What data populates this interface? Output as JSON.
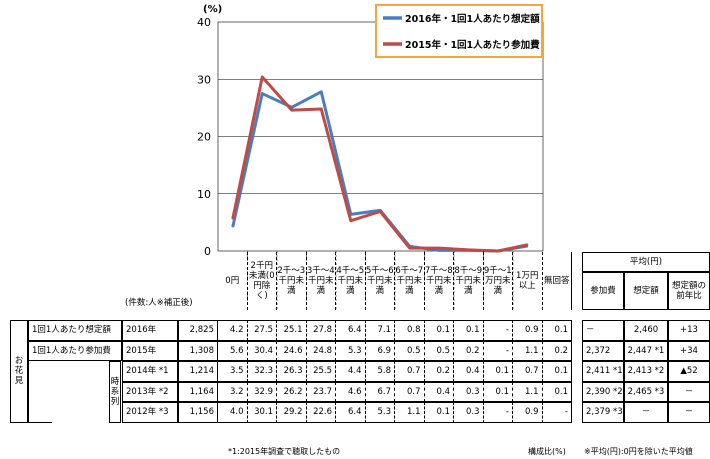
{
  "chart_data": {
    "type": "line",
    "ylabel": "(%)",
    "ylim": [
      0,
      40
    ],
    "yticks": [
      "0",
      "10",
      "20",
      "30",
      "40"
    ],
    "categories": [
      "0円",
      "2千円未満(0円除く)",
      "2千～3千円未満",
      "3千～4千円未満",
      "4千～5千円未満",
      "5千～6千円未満",
      "6千～7千円未満",
      "7千～8千円未満",
      "8千～9千円未満",
      "9千～1万円未満",
      "1万円以上"
    ],
    "series": [
      {
        "name": "2016年・1回1人あたり想定額",
        "color": "#4a7ebb",
        "values": [
          4.2,
          27.5,
          25.1,
          27.8,
          6.4,
          7.1,
          0.8,
          0.1,
          0.1,
          0,
          0.9
        ]
      },
      {
        "name": "2015年・1回1人あたり参加費",
        "color": "#be4b48",
        "values": [
          5.6,
          30.4,
          24.6,
          24.8,
          5.3,
          6.9,
          0.5,
          0.5,
          0.2,
          0,
          1.1
        ]
      }
    ],
    "legend_position": "top-right",
    "legend_border_color": "#f2a541",
    "grid": true
  },
  "table": {
    "col_headers": [
      "0円",
      "2千円未満(0円除く)",
      "2千～3千円未満",
      "3千～4千円未満",
      "4千～5千円未満",
      "5千～6千円未満",
      "6千～7千円未満",
      "7千～8千円未満",
      "8千～9千円未満",
      "9千～1万円未満",
      "1万円以上",
      "無回答"
    ],
    "count_header": "(件数:人※補正後)",
    "side_label": "お花見",
    "group_series_label": "時系列",
    "avg_header": "平均(円)",
    "avg_cols": [
      "参加費",
      "想定額",
      "想定額の前年比"
    ],
    "rows": [
      {
        "label": "1回1人あたり想定額",
        "year": "2016年",
        "n": "2,825",
        "values": [
          "4.2",
          "27.5",
          "25.1",
          "27.8",
          "6.4",
          "7.1",
          "0.8",
          "0.1",
          "0.1",
          "-",
          "0.9",
          "0.1"
        ],
        "avg": [
          "－",
          "2,460",
          "+13"
        ]
      },
      {
        "label": "1回1人あたり参加費",
        "year": "2015年",
        "n": "1,308",
        "values": [
          "5.6",
          "30.4",
          "24.6",
          "24.8",
          "5.3",
          "6.9",
          "0.5",
          "0.5",
          "0.2",
          "-",
          "1.1",
          "0.2"
        ],
        "avg": [
          "2,372",
          "2,447 *1",
          "+34"
        ]
      },
      {
        "label": "",
        "year": "2014年 *1",
        "n": "1,214",
        "values": [
          "3.5",
          "32.3",
          "26.3",
          "25.5",
          "4.4",
          "5.8",
          "0.7",
          "0.2",
          "0.4",
          "0.1",
          "0.7",
          "0.1"
        ],
        "avg": [
          "2,411 *1",
          "2,413 *2",
          "▲52"
        ]
      },
      {
        "label": "",
        "year": "2013年 *2",
        "n": "1,164",
        "values": [
          "3.2",
          "32.9",
          "26.2",
          "23.7",
          "4.6",
          "6.7",
          "0.7",
          "0.4",
          "0.3",
          "0.1",
          "1.1",
          "0.1"
        ],
        "avg": [
          "2,390 *2",
          "2,465 *3",
          "－"
        ]
      },
      {
        "label": "",
        "year": "2012年 *3",
        "n": "1,156",
        "values": [
          "4.0",
          "30.1",
          "29.2",
          "22.6",
          "6.4",
          "5.3",
          "1.1",
          "0.1",
          "0.3",
          "-",
          "0.9",
          "-"
        ],
        "avg": [
          "2,379 *3",
          "－",
          "－"
        ]
      }
    ],
    "footnote_left": "*1:2015年調査で聴取したもの",
    "footnote_mid": "構成比(%)",
    "footnote_right": "※平均(円):0円を除いた平均値"
  }
}
